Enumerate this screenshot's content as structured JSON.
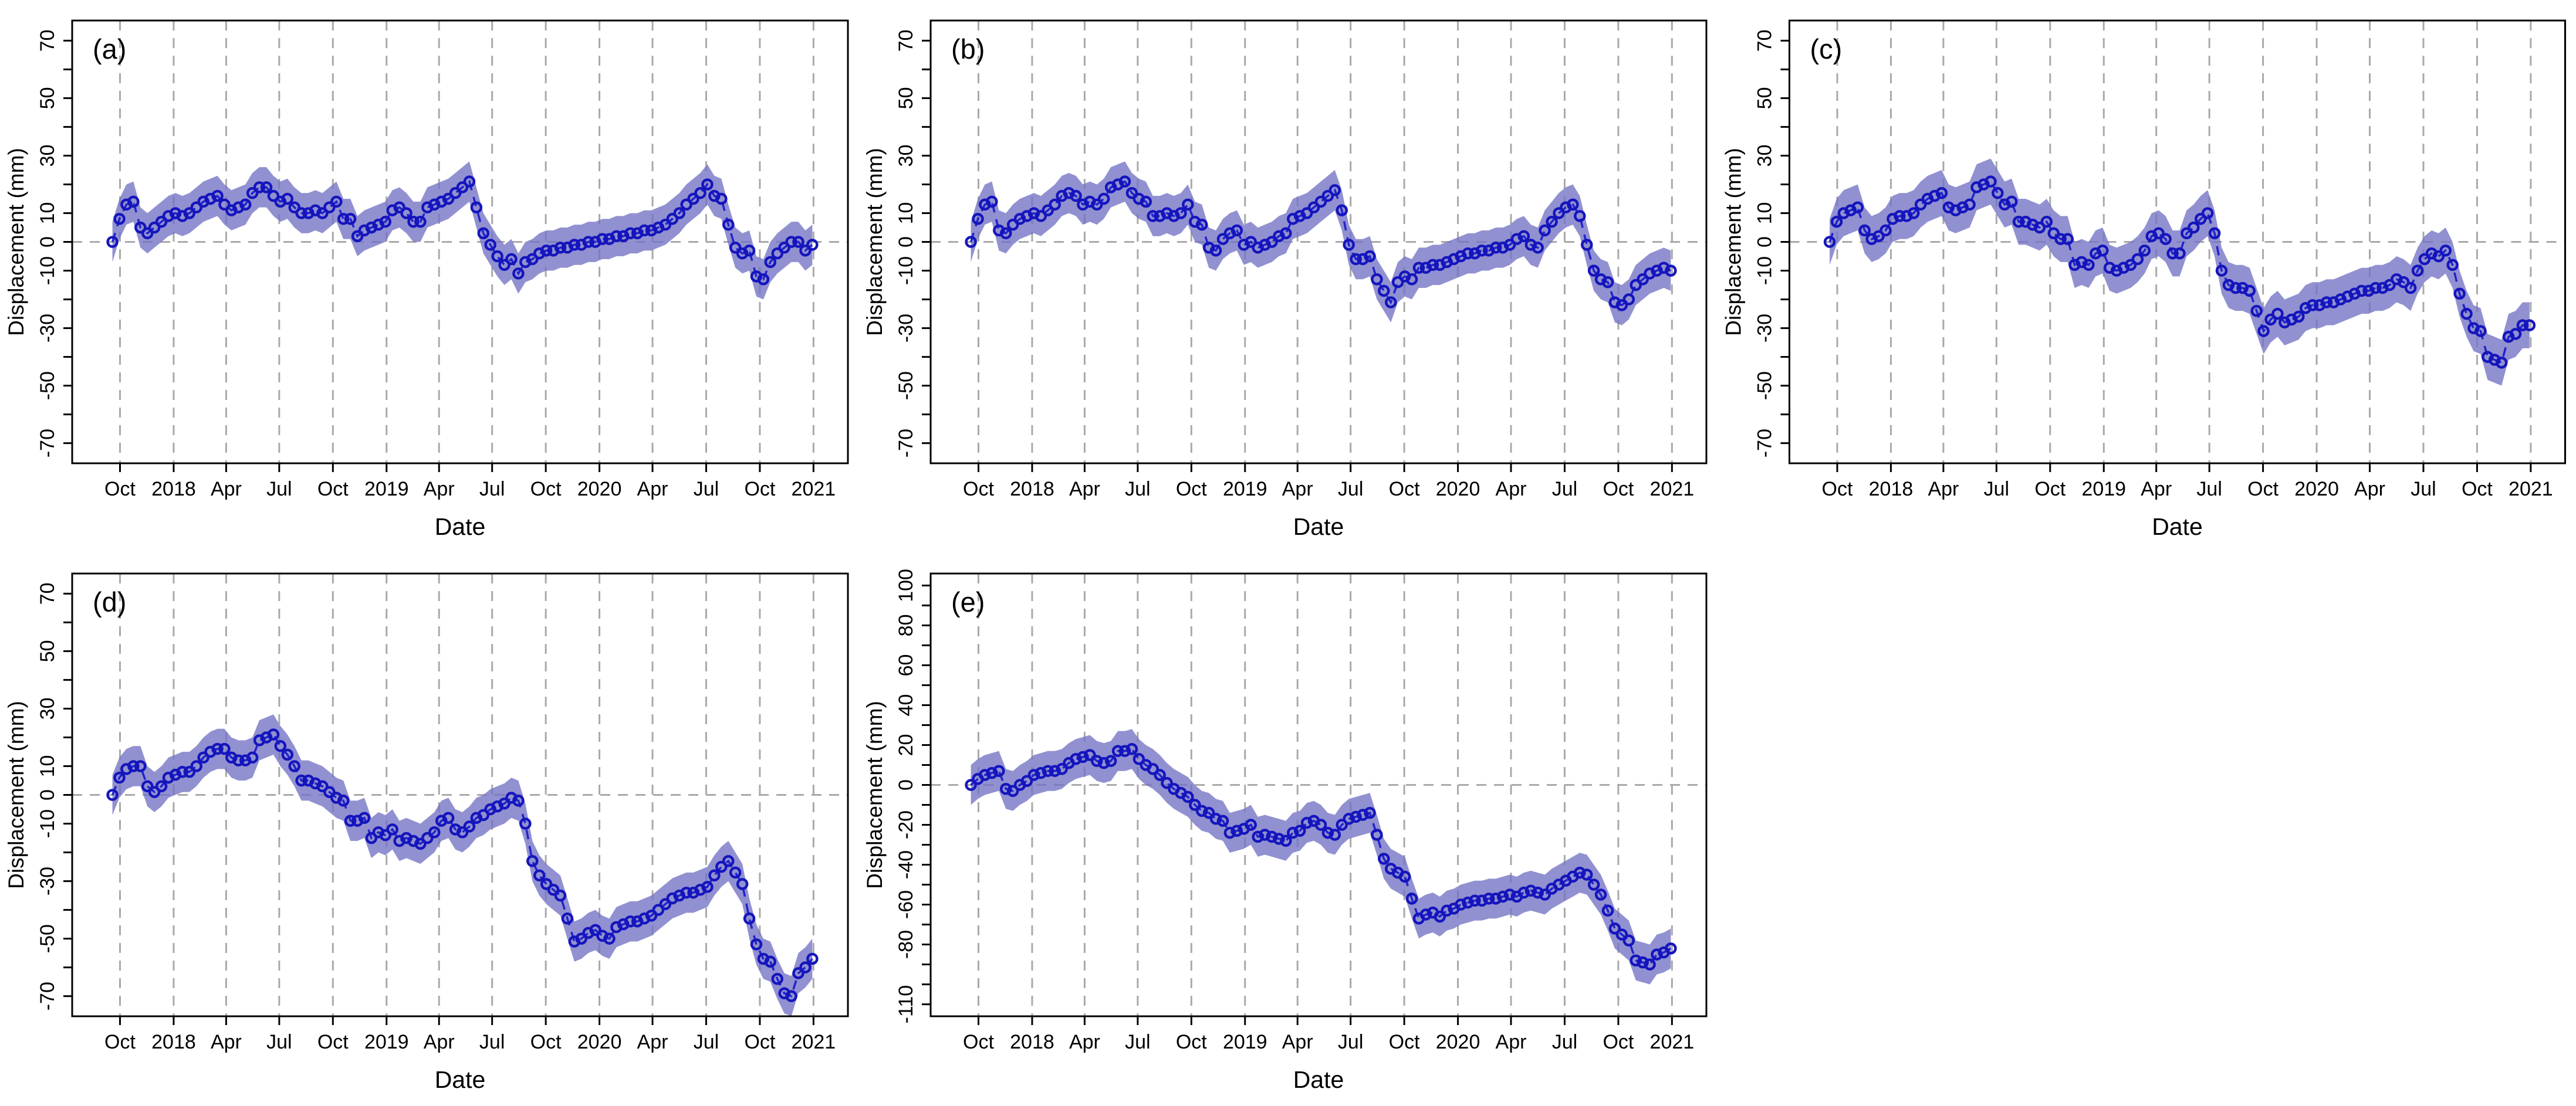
{
  "figure": {
    "description": "Five-panel time-series figure of ground displacement with confidence bands",
    "panel_letters": [
      "(a)",
      "(b)",
      "(c)",
      "(d)",
      "(e)"
    ]
  },
  "chart_data": {
    "type": "line",
    "x_label": "Date",
    "y_label": "Displacement (mm)",
    "legend": "none",
    "grid": "vertical-dashed-at-x-ticks, horizontal-dashed-at-zero",
    "x_range_days": [
      -75,
      1255
    ],
    "x_ticks": [
      {
        "day": 7,
        "label": "Oct"
      },
      {
        "day": 99,
        "label": "2018"
      },
      {
        "day": 189,
        "label": "Apr"
      },
      {
        "day": 280,
        "label": "Jul"
      },
      {
        "day": 372,
        "label": "Oct"
      },
      {
        "day": 464,
        "label": "2019"
      },
      {
        "day": 554,
        "label": "Apr"
      },
      {
        "day": 645,
        "label": "Jul"
      },
      {
        "day": 737,
        "label": "Oct"
      },
      {
        "day": 829,
        "label": "2020"
      },
      {
        "day": 920,
        "label": "Apr"
      },
      {
        "day": 1012,
        "label": "Jul"
      },
      {
        "day": 1104,
        "label": "Oct"
      },
      {
        "day": 1196,
        "label": "2021"
      }
    ],
    "sampling": {
      "start_day": -6,
      "step_days": 12,
      "count": 101,
      "start_date_approx": "late Sep 2017",
      "end_date_approx": "Jan 2021"
    },
    "y_axes": {
      "standard": {
        "range": [
          -77,
          77
        ],
        "tick_step": 10,
        "tick_min": -70,
        "tick_max": 70,
        "labeled_ticks": [
          -70,
          -50,
          -30,
          -10,
          0,
          10,
          30,
          50,
          70
        ]
      },
      "extended": {
        "range": [
          -116,
          106
        ],
        "tick_step": 10,
        "tick_min": -110,
        "tick_max": 100,
        "labeled_ticks": [
          -110,
          -80,
          -60,
          -40,
          -20,
          0,
          20,
          40,
          60,
          80,
          100
        ]
      }
    },
    "style": {
      "band_fill": "#7272c4",
      "band_opacity": 0.78,
      "line_color": "#2222cc",
      "line_dash": "16 12",
      "marker_color": "#1515bd",
      "marker_radius": 8,
      "marker_stroke_width": 4.5,
      "grid_color": "#a9a9a9",
      "grid_dash": "17 13",
      "zero_line_color": "#a9a9a9",
      "axis_color": "#000000"
    },
    "panels": [
      {
        "id": "a",
        "letter": "(a)",
        "axis": "standard",
        "band_halfwidth": 7,
        "values": [
          0,
          8,
          13,
          14,
          5,
          3,
          5,
          7,
          9,
          10,
          9,
          10,
          12,
          14,
          15,
          16,
          13,
          11,
          12,
          13,
          17,
          19,
          19,
          16,
          14,
          15,
          12,
          10,
          10,
          11,
          10,
          12,
          14,
          8,
          8,
          2,
          4,
          5,
          6,
          7,
          11,
          12,
          10,
          7,
          7,
          12,
          13,
          14,
          15,
          17,
          19,
          21,
          12,
          3,
          -1,
          -5,
          -8,
          -6,
          -11,
          -7,
          -6,
          -4,
          -3,
          -3,
          -2,
          -2,
          -1,
          -1,
          0,
          0,
          1,
          1,
          2,
          2,
          3,
          3,
          4,
          4,
          5,
          6,
          8,
          10,
          13,
          15,
          17,
          20,
          16,
          15,
          6,
          -2,
          -4,
          -3,
          -12,
          -13,
          -7,
          -4,
          -2,
          0,
          0,
          -3,
          -1
        ]
      },
      {
        "id": "b",
        "letter": "(b)",
        "axis": "standard",
        "band_halfwidth": 7,
        "values": [
          0,
          8,
          13,
          14,
          4,
          3,
          6,
          8,
          9,
          10,
          9,
          11,
          13,
          16,
          17,
          16,
          13,
          14,
          13,
          15,
          19,
          20,
          21,
          17,
          15,
          14,
          9,
          9,
          10,
          9,
          10,
          13,
          7,
          6,
          -2,
          -3,
          1,
          3,
          4,
          -1,
          0,
          -2,
          -1,
          0,
          2,
          3,
          8,
          9,
          10,
          12,
          14,
          16,
          18,
          11,
          -1,
          -6,
          -6,
          -5,
          -13,
          -17,
          -21,
          -14,
          -12,
          -13,
          -9,
          -9,
          -8,
          -8,
          -7,
          -6,
          -5,
          -4,
          -4,
          -3,
          -3,
          -2,
          -2,
          -1,
          1,
          2,
          -1,
          -2,
          4,
          7,
          10,
          12,
          13,
          9,
          -1,
          -10,
          -13,
          -14,
          -21,
          -22,
          -20,
          -15,
          -13,
          -11,
          -10,
          -9,
          -10
        ]
      },
      {
        "id": "c",
        "letter": "(c)",
        "axis": "standard",
        "band_halfwidth": 8,
        "values": [
          0,
          7,
          10,
          11,
          12,
          4,
          1,
          2,
          4,
          8,
          9,
          9,
          10,
          13,
          15,
          16,
          17,
          12,
          11,
          12,
          13,
          19,
          20,
          21,
          17,
          13,
          14,
          7,
          7,
          6,
          5,
          7,
          3,
          1,
          1,
          -8,
          -7,
          -8,
          -4,
          -3,
          -9,
          -10,
          -9,
          -8,
          -6,
          -3,
          2,
          3,
          1,
          -4,
          -4,
          3,
          5,
          8,
          10,
          3,
          -10,
          -15,
          -16,
          -16,
          -17,
          -24,
          -31,
          -27,
          -25,
          -28,
          -27,
          -26,
          -23,
          -22,
          -22,
          -21,
          -21,
          -20,
          -19,
          -18,
          -17,
          -17,
          -16,
          -16,
          -15,
          -13,
          -14,
          -16,
          -10,
          -6,
          -4,
          -5,
          -3,
          -8,
          -18,
          -25,
          -30,
          -31,
          -40,
          -41,
          -42,
          -33,
          -32,
          -29,
          -29
        ]
      },
      {
        "id": "d",
        "letter": "(d)",
        "axis": "standard",
        "band_halfwidth": 7,
        "values": [
          0,
          6,
          9,
          10,
          10,
          3,
          1,
          3,
          6,
          7,
          8,
          8,
          10,
          13,
          15,
          16,
          16,
          13,
          12,
          12,
          13,
          19,
          20,
          21,
          17,
          14,
          10,
          5,
          5,
          4,
          3,
          1,
          -1,
          -2,
          -9,
          -9,
          -8,
          -15,
          -13,
          -14,
          -12,
          -16,
          -15,
          -16,
          -17,
          -15,
          -13,
          -9,
          -8,
          -12,
          -13,
          -11,
          -8,
          -7,
          -5,
          -4,
          -3,
          -1,
          -2,
          -10,
          -23,
          -28,
          -31,
          -33,
          -35,
          -43,
          -51,
          -50,
          -48,
          -47,
          -49,
          -50,
          -46,
          -45,
          -44,
          -44,
          -43,
          -42,
          -40,
          -38,
          -36,
          -35,
          -34,
          -34,
          -33,
          -32,
          -28,
          -25,
          -23,
          -27,
          -31,
          -43,
          -52,
          -57,
          -58,
          -64,
          -69,
          -70,
          -62,
          -60,
          -57
        ]
      },
      {
        "id": "e",
        "letter": "(e)",
        "axis": "extended",
        "band_halfwidth": 10,
        "values": [
          0,
          3,
          5,
          6,
          7,
          -2,
          -3,
          0,
          2,
          5,
          6,
          7,
          7,
          8,
          11,
          13,
          14,
          15,
          12,
          11,
          12,
          17,
          17,
          18,
          13,
          10,
          8,
          5,
          1,
          -2,
          -4,
          -6,
          -10,
          -13,
          -14,
          -17,
          -18,
          -24,
          -23,
          -22,
          -20,
          -26,
          -25,
          -26,
          -27,
          -28,
          -24,
          -23,
          -19,
          -18,
          -20,
          -24,
          -25,
          -20,
          -17,
          -16,
          -15,
          -14,
          -25,
          -37,
          -42,
          -44,
          -46,
          -57,
          -67,
          -65,
          -64,
          -66,
          -63,
          -62,
          -60,
          -59,
          -58,
          -58,
          -57,
          -57,
          -56,
          -55,
          -56,
          -54,
          -53,
          -54,
          -55,
          -52,
          -50,
          -48,
          -46,
          -44,
          -45,
          -50,
          -55,
          -63,
          -72,
          -75,
          -78,
          -88,
          -89,
          -90,
          -85,
          -84,
          -82
        ]
      }
    ]
  }
}
